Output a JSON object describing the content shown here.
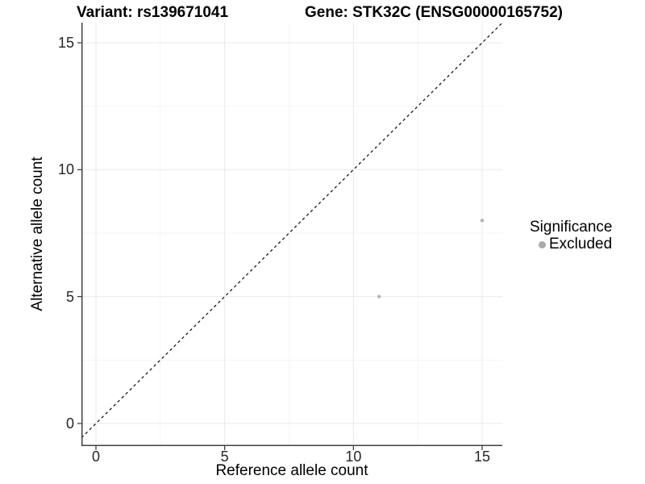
{
  "chart_data": {
    "type": "scatter",
    "title_left": "Variant: rs139671041",
    "title_right": "Gene: STK32C (ENSG00000165752)",
    "xlabel": "Reference allele count",
    "ylabel": "Alternative allele count",
    "x_ticks": [
      0,
      5,
      10,
      15
    ],
    "y_ticks": [
      0,
      5,
      10,
      15
    ],
    "x_minor_ticks": [
      2.5,
      7.5,
      12.5
    ],
    "y_minor_ticks": [
      2.5,
      7.5,
      12.5
    ],
    "xlim": [
      -0.56,
      15.78
    ],
    "ylim": [
      -0.89,
      15.79
    ],
    "grid": true,
    "series": [
      {
        "name": "Excluded",
        "points": [
          [
            11,
            5
          ],
          [
            15,
            8
          ]
        ],
        "color": "#b5b5b5",
        "point_radius": 2.2
      }
    ],
    "reference_line": {
      "type": "identity_y_equals_x",
      "style": "dashed",
      "color": "#1a1a1a"
    },
    "legend": {
      "title": "Significance",
      "position": "right",
      "entries": [
        {
          "label": "Excluded",
          "marker": "circle",
          "color": "#a9a9a9"
        }
      ]
    },
    "colors": {
      "background": "#ffffff",
      "grid_major": "#ebebeb",
      "grid_minor": "#f2f2f2",
      "axis_line": "#404040",
      "tick_mark": "#333333",
      "tick_text": "#262626",
      "title_text": "#000000"
    }
  }
}
